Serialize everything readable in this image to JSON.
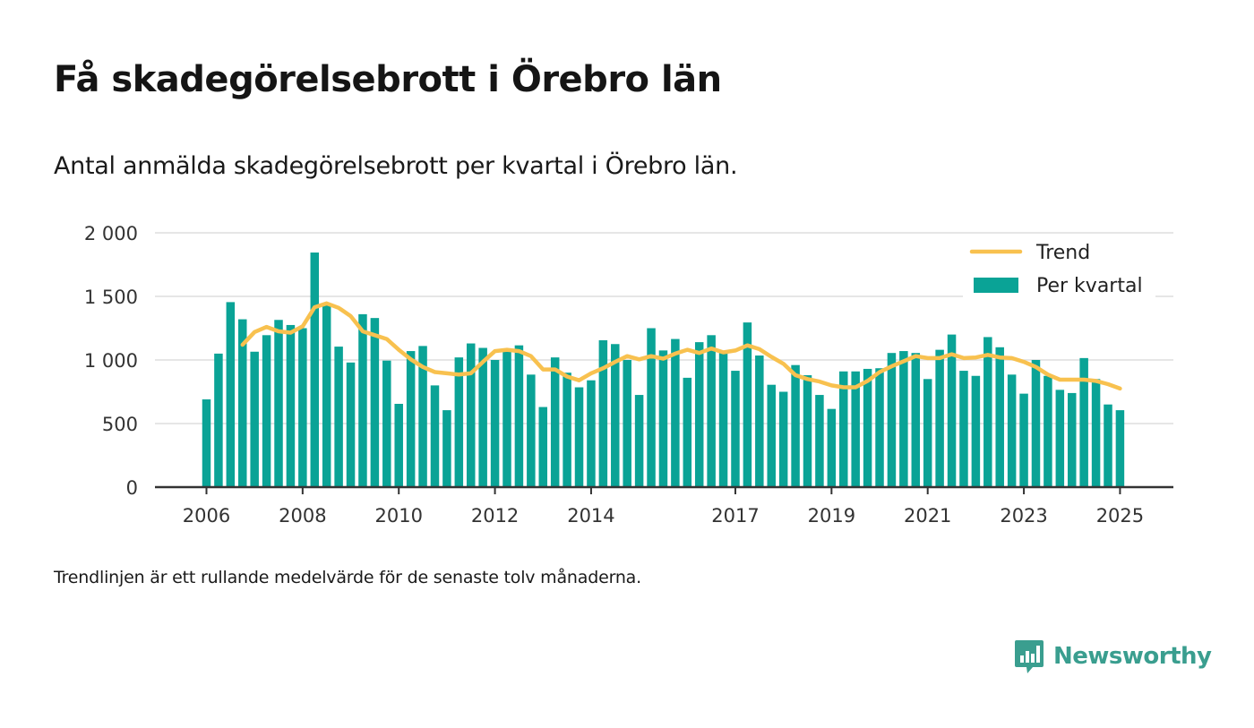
{
  "title": "Få skadegörelsebrott i Örebro län",
  "subtitle": "Antal anmälda skadegörelsebrott per kvartal i Örebro län.",
  "footnote": "Trendlinjen är ett rullande medelvärde för de senaste tolv månaderna.",
  "brand": {
    "name": "Newsworthy",
    "icon": "newsworthy-logo-icon",
    "color": "#3a9e8f"
  },
  "colors": {
    "bars": "#0aa396",
    "trend": "#f8c14f",
    "grid": "#dddddd",
    "axis": "#333333"
  },
  "chart_data": {
    "type": "bar",
    "ylim": [
      0,
      2000
    ],
    "yticks": [
      0,
      500,
      1000,
      1500,
      2000
    ],
    "ytick_labels": [
      "0",
      "500",
      "1 000",
      "1 500",
      "2 000"
    ],
    "xticks": [
      2006,
      2008,
      2010,
      2012,
      2014,
      2017,
      2019,
      2021,
      2023,
      2025
    ],
    "grid": true,
    "legend": {
      "position": "top-right",
      "entries": [
        "Trend",
        "Per kvartal"
      ]
    },
    "series": [
      {
        "name": "Per kvartal",
        "type": "bar",
        "start": "2006 Q1",
        "values": [
          690,
          1050,
          1455,
          1320,
          1065,
          1195,
          1315,
          1275,
          1250,
          1845,
          1435,
          1105,
          980,
          1360,
          1330,
          995,
          655,
          1070,
          1110,
          800,
          605,
          1020,
          1130,
          1095,
          1000,
          1075,
          1115,
          885,
          630,
          1020,
          900,
          785,
          840,
          1155,
          1125,
          1000,
          725,
          1250,
          1075,
          1165,
          860,
          1140,
          1195,
          1055,
          915,
          1295,
          1035,
          805,
          750,
          960,
          880,
          725,
          615,
          910,
          910,
          930,
          935,
          1055,
          1070,
          1055,
          850,
          1080,
          1200,
          915,
          875,
          1180,
          1100,
          885,
          735,
          1000,
          875,
          765,
          740,
          1015,
          850,
          650,
          605
        ]
      },
      {
        "name": "Trend",
        "type": "line",
        "start": "2006 Q4",
        "values": [
          1120,
          1220,
          1260,
          1225,
          1215,
          1265,
          1415,
          1445,
          1410,
          1345,
          1225,
          1195,
          1165,
          1080,
          1005,
          945,
          905,
          895,
          885,
          895,
          985,
          1070,
          1080,
          1070,
          1030,
          925,
          925,
          870,
          840,
          895,
          935,
          985,
          1030,
          1005,
          1030,
          1010,
          1050,
          1080,
          1055,
          1090,
          1060,
          1075,
          1115,
          1085,
          1025,
          970,
          880,
          850,
          830,
          800,
          785,
          785,
          835,
          905,
          950,
          990,
          1030,
          1015,
          1015,
          1045,
          1015,
          1020,
          1040,
          1020,
          1015,
          985,
          945,
          885,
          845,
          845,
          845,
          835,
          810,
          775
        ]
      }
    ]
  }
}
